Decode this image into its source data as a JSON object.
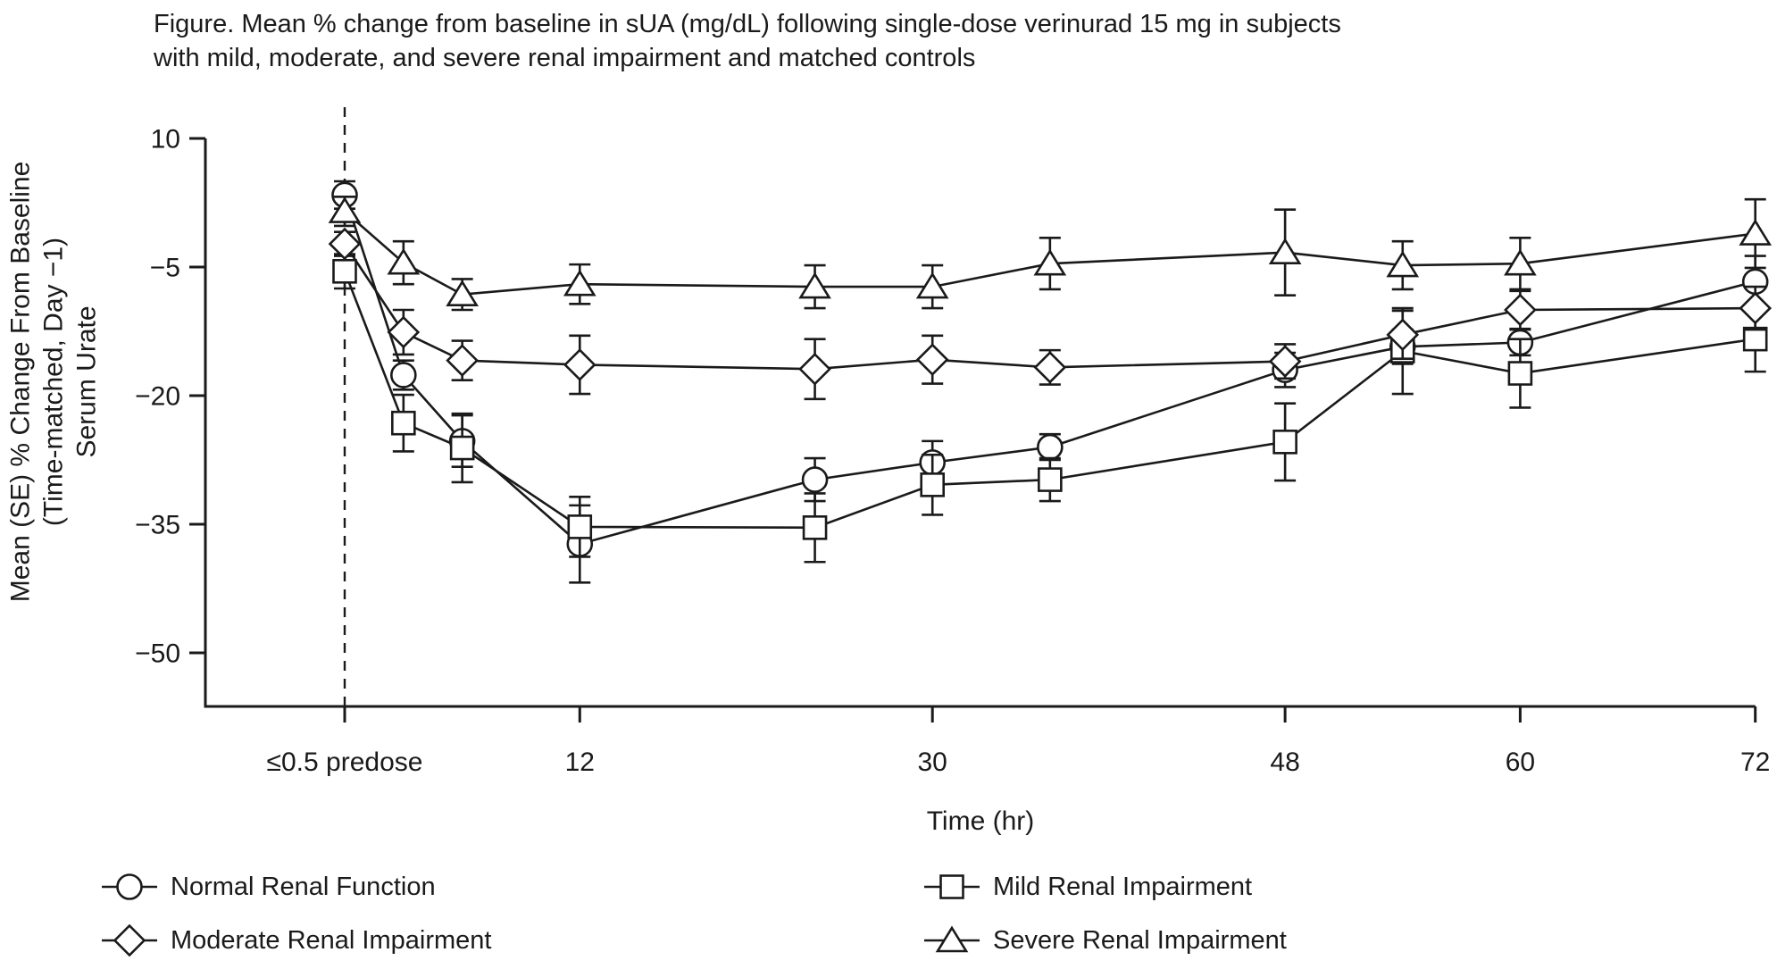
{
  "figure": {
    "background": "#ffffff",
    "ink_color": "#1a1a1a"
  },
  "title": {
    "line1": "Figure. Mean % change from baseline in sUA (mg/dL) following single-dose verinurad 15 mg in subjects",
    "line2": "with mild, moderate, and severe renal impairment and matched controls"
  },
  "chart_data": {
    "type": "line",
    "title": "Figure. Mean % change from baseline in sUA (mg/dL) following single-dose verinurad 15 mg in subjects with mild, moderate, and severe renal impairment and matched controls",
    "xlabel": "Time (hr)",
    "ylabel_lines": [
      "Mean (SE) % Change From Baseline",
      "(Time-matched, Day −1)",
      "Serum Urate"
    ],
    "grid": false,
    "legend_position": "bottom",
    "xlim_hours": [
      -7.1,
      72
    ],
    "ylim": [
      -56.3,
      10
    ],
    "predose_dashed_line_hour": 0,
    "x_hours": [
      0,
      3,
      6,
      12,
      24,
      30,
      36,
      48,
      54,
      60,
      72
    ],
    "x_tick_labels": [
      {
        "hour": 0,
        "label": "≤0.5 predose"
      },
      {
        "hour": 12,
        "label": "12"
      },
      {
        "hour": 30,
        "label": "30"
      },
      {
        "hour": 48,
        "label": "48"
      },
      {
        "hour": 60,
        "label": "60"
      },
      {
        "hour": 72,
        "label": "72"
      }
    ],
    "y_ticks": [
      {
        "value": 10,
        "label": "10"
      },
      {
        "value": -5,
        "label": "−5"
      },
      {
        "value": -20,
        "label": "−20"
      },
      {
        "value": -35,
        "label": "−35"
      },
      {
        "value": -50,
        "label": "−50"
      }
    ],
    "series": [
      {
        "id": "normal",
        "label": "Normal Renal Function",
        "marker": "circle",
        "values": [
          3.4,
          -17.6,
          -25.3,
          -37.3,
          -29.8,
          -27.8,
          -26.0,
          -17.0,
          -14.3,
          -13.8,
          -6.7
        ],
        "se": [
          1.6,
          1.7,
          3.0,
          4.5,
          2.5,
          2.5,
          1.5,
          2.0,
          2.0,
          1.5,
          3.0
        ]
      },
      {
        "id": "mild",
        "label": "Mild Renal Impairment",
        "marker": "square",
        "values": [
          -5.5,
          -23.2,
          -26.1,
          -35.3,
          -35.4,
          -30.4,
          -29.8,
          -25.4,
          -14.8,
          -17.4,
          -13.4
        ],
        "se": [
          2.0,
          3.3,
          4.0,
          3.5,
          4.0,
          3.5,
          2.5,
          4.5,
          5.0,
          4.0,
          3.8
        ]
      },
      {
        "id": "moderate",
        "label": "Moderate Renal Impairment",
        "marker": "diamond",
        "values": [
          -2.3,
          -12.6,
          -15.9,
          -16.4,
          -16.9,
          -15.8,
          -16.7,
          -16.0,
          -12.9,
          -10.0,
          -9.8
        ],
        "se": [
          1.4,
          2.6,
          2.3,
          3.4,
          3.5,
          2.8,
          2.0,
          2.0,
          2.8,
          2.2,
          2.5
        ]
      },
      {
        "id": "severe",
        "label": "Severe Renal Impairment",
        "marker": "triangle",
        "values": [
          1.5,
          -4.5,
          -8.2,
          -7.0,
          -7.3,
          -7.3,
          -4.6,
          -3.3,
          -4.8,
          -4.6,
          -1.1
        ],
        "se": [
          1.7,
          2.5,
          1.8,
          2.3,
          2.5,
          2.5,
          3.0,
          5.0,
          2.8,
          3.0,
          4.0
        ]
      }
    ],
    "legend_rows": [
      [
        "normal",
        "mild"
      ],
      [
        "moderate",
        "severe"
      ]
    ]
  }
}
